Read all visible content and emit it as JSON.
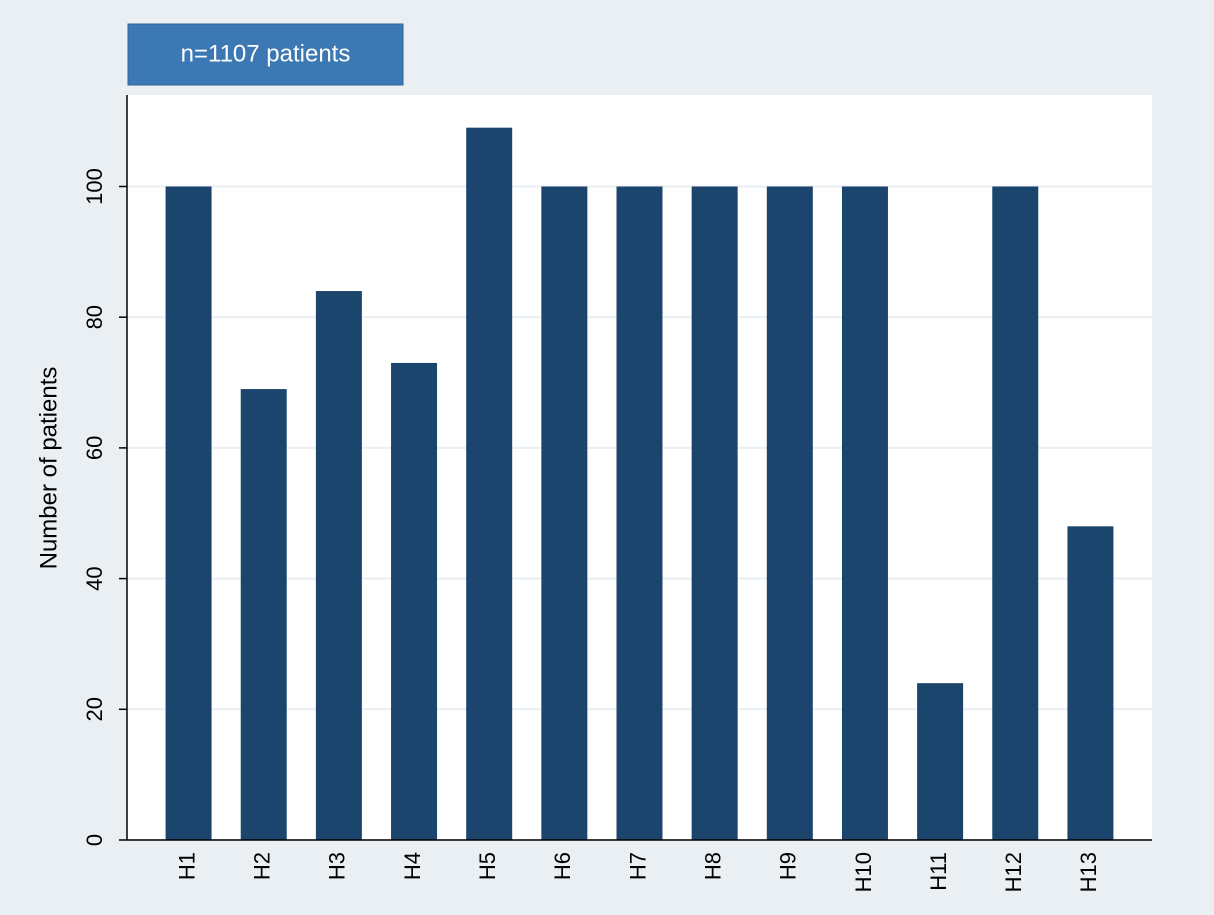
{
  "chart_data": {
    "type": "bar",
    "annotation": "n=1107 patients",
    "y_label": "Number of patients",
    "categories": [
      "H1",
      "H2",
      "H3",
      "H4",
      "H5",
      "H6",
      "H7",
      "H8",
      "H9",
      "H10",
      "H11",
      "H12",
      "H13"
    ],
    "values": [
      100,
      69,
      84,
      73,
      109,
      100,
      100,
      100,
      100,
      100,
      24,
      100,
      48
    ],
    "color": "#1b456d",
    "ylim": [
      0,
      114
    ],
    "yticks": [
      0,
      20,
      40,
      60,
      80,
      100
    ],
    "grid": true
  }
}
